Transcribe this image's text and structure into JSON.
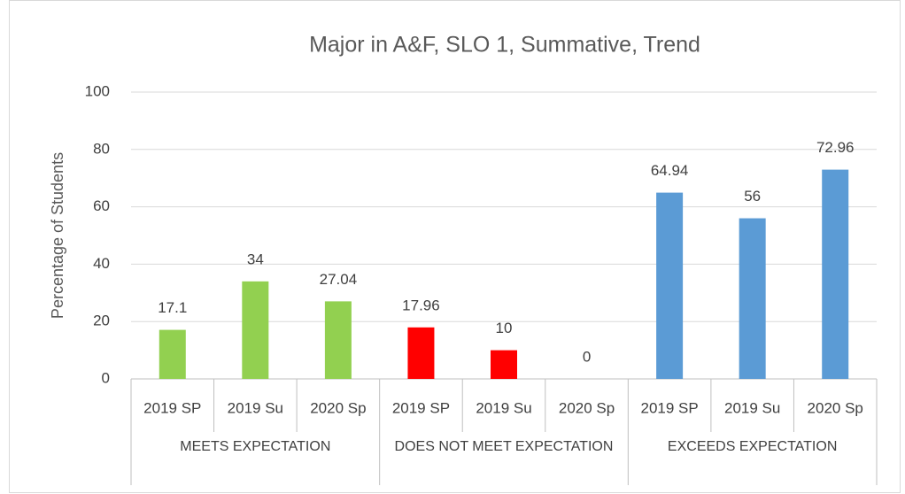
{
  "chart_data": {
    "type": "bar",
    "title": "Major in A&F, SLO 1, Summative, Trend",
    "y_label": "Percentage of Students",
    "groups": [
      {
        "name": "MEETS EXPECTATION",
        "color": "#92d050",
        "categories": [
          "2019 SP",
          "2019 Su",
          "2020 Sp"
        ],
        "values": [
          17.1,
          34,
          27.04
        ]
      },
      {
        "name": "DOES NOT MEET EXPECTATION",
        "color": "#ff0000",
        "categories": [
          "2019 SP",
          "2019 Su",
          "2020 Sp"
        ],
        "values": [
          17.96,
          10,
          0
        ]
      },
      {
        "name": "EXCEEDS EXPECTATION",
        "color": "#5b9bd5",
        "categories": [
          "2019 SP",
          "2019 Su",
          "2020 Sp"
        ],
        "values": [
          64.94,
          56,
          72.96
        ]
      }
    ],
    "ylim": [
      0,
      100
    ],
    "yticks": [
      0,
      20,
      40,
      60,
      80,
      100
    ],
    "grid": true
  }
}
